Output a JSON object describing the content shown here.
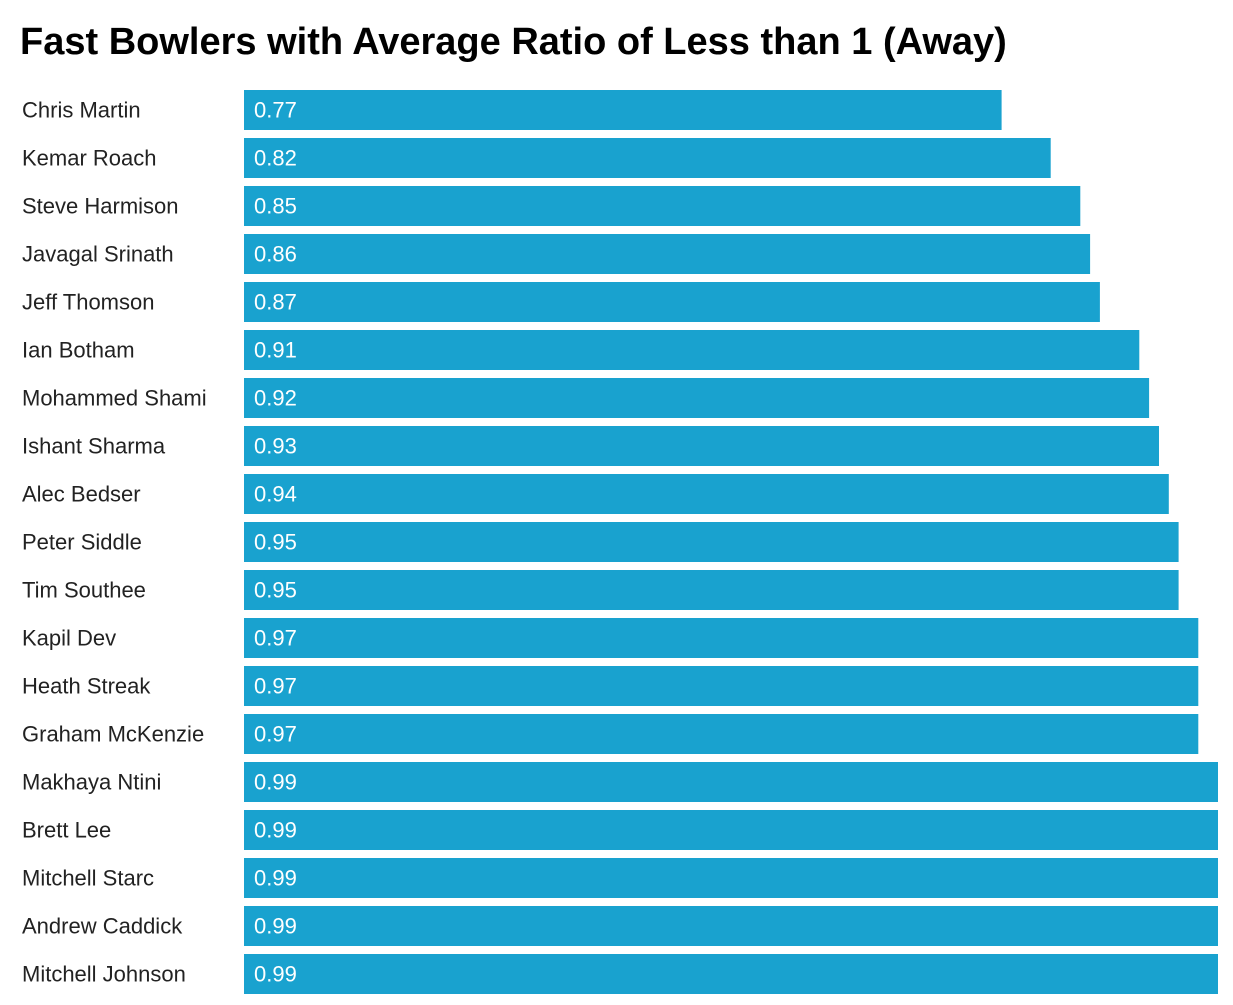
{
  "chart_data": {
    "type": "bar",
    "orientation": "horizontal",
    "title": "Fast Bowlers with Average Ratio of Less than 1 (Away)",
    "xlabel": "",
    "ylabel": "",
    "categories": [
      "Chris Martin",
      "Kemar Roach",
      "Steve Harmison",
      "Javagal Srinath",
      "Jeff Thomson",
      "Ian Botham",
      "Mohammed Shami",
      "Ishant Sharma",
      "Alec Bedser",
      "Peter Siddle",
      "Tim Southee",
      "Kapil Dev",
      "Heath Streak",
      "Graham McKenzie",
      "Makhaya Ntini",
      "Brett Lee",
      "Mitchell Starc",
      "Andrew Caddick",
      "Mitchell Johnson"
    ],
    "values": [
      0.77,
      0.82,
      0.85,
      0.86,
      0.87,
      0.91,
      0.92,
      0.93,
      0.94,
      0.95,
      0.95,
      0.97,
      0.97,
      0.97,
      0.99,
      0.99,
      0.99,
      0.99,
      0.99
    ],
    "value_labels": [
      "0.77",
      "0.82",
      "0.85",
      "0.86",
      "0.87",
      "0.91",
      "0.92",
      "0.93",
      "0.94",
      "0.95",
      "0.95",
      "0.97",
      "0.97",
      "0.97",
      "0.99",
      "0.99",
      "0.99",
      "0.99",
      "0.99"
    ],
    "xlim": [
      0,
      0.99
    ],
    "grid": false,
    "legend": "none",
    "bar_color": "#19A2CF"
  }
}
